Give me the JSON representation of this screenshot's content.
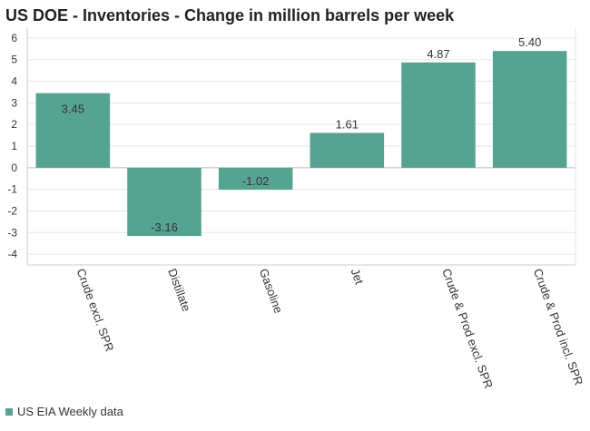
{
  "chart_data": {
    "type": "bar",
    "title": "US DOE - Inventories - Change in million barrels per week",
    "xlabel": "",
    "ylabel": "",
    "categories": [
      "Crude excl. SPR",
      "Distillate",
      "Gasoline",
      "Jet",
      "Crude & Prod excl. SPR",
      "Crude & Prod incl. SPR"
    ],
    "series": [
      {
        "name": "US EIA Weekly data",
        "values": [
          3.45,
          -3.16,
          -1.02,
          1.61,
          4.87,
          5.4
        ],
        "labels": [
          "3.45",
          "-3.16",
          "-1.02",
          "1.61",
          "4.87",
          "5.40"
        ],
        "color": "#55a391"
      }
    ],
    "ylim": [
      -4.5,
      6.5
    ],
    "yticks": [
      6,
      5,
      4,
      3,
      2,
      1,
      0,
      -1,
      -2,
      -3,
      -4
    ],
    "grid": true,
    "legend_position": "bottom-left"
  }
}
